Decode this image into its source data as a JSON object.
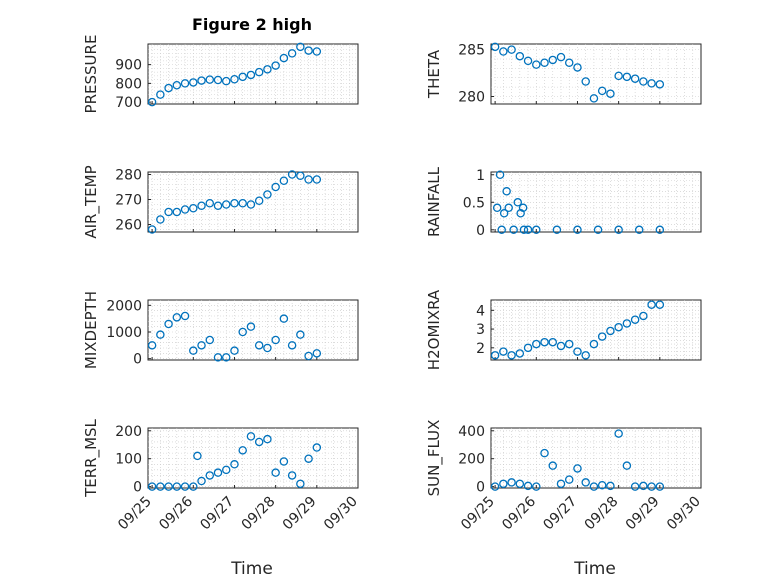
{
  "figure": {
    "title": "Figure 2 high",
    "xlabel": "Time"
  },
  "chart_data": [
    {
      "id": "pressure",
      "type": "scatter",
      "title": "Figure 2 high",
      "ylabel": "PRESSURE",
      "yticks": [
        "700",
        "800",
        "900"
      ],
      "ylim": [
        690,
        1010
      ],
      "xticklabels_shown": false,
      "x": [
        0.0,
        0.2,
        0.4,
        0.6,
        0.8,
        1.0,
        1.2,
        1.4,
        1.6,
        1.8,
        2.0,
        2.2,
        2.4,
        2.6,
        2.8,
        3.0,
        3.2,
        3.4,
        3.6,
        3.8,
        4.0
      ],
      "y": [
        700,
        740,
        775,
        790,
        800,
        805,
        815,
        820,
        818,
        812,
        822,
        835,
        845,
        860,
        875,
        895,
        935,
        960,
        995,
        975,
        970
      ]
    },
    {
      "id": "theta",
      "type": "scatter",
      "ylabel": "THETA",
      "yticks": [
        "280",
        "285"
      ],
      "ylim": [
        279.2,
        285.6
      ],
      "xticklabels_shown": false,
      "x": [
        0.0,
        0.2,
        0.4,
        0.6,
        0.8,
        1.0,
        1.2,
        1.4,
        1.6,
        1.8,
        2.0,
        2.2,
        2.4,
        2.6,
        2.8,
        3.0,
        3.2,
        3.4,
        3.6,
        3.8,
        4.0
      ],
      "y": [
        285.3,
        284.8,
        285.0,
        284.3,
        283.8,
        283.4,
        283.6,
        283.9,
        284.2,
        283.6,
        283.1,
        281.6,
        279.8,
        280.6,
        280.3,
        282.2,
        282.1,
        281.9,
        281.6,
        281.4,
        281.3
      ]
    },
    {
      "id": "air_temp",
      "type": "scatter",
      "ylabel": "AIR_TEMP",
      "yticks": [
        "260",
        "270",
        "280"
      ],
      "ylim": [
        257,
        281
      ],
      "xticklabels_shown": false,
      "x": [
        0.0,
        0.2,
        0.4,
        0.6,
        0.8,
        1.0,
        1.2,
        1.4,
        1.6,
        1.8,
        2.0,
        2.2,
        2.4,
        2.6,
        2.8,
        3.0,
        3.2,
        3.4,
        3.6,
        3.8,
        4.0
      ],
      "y": [
        258,
        262,
        265,
        265,
        266,
        266.5,
        267.5,
        268.5,
        267.5,
        268,
        268.5,
        268.5,
        268,
        269.5,
        272,
        275,
        277.5,
        280,
        279.5,
        278,
        278
      ]
    },
    {
      "id": "rainfall",
      "type": "scatter",
      "ylabel": "RAINFALL",
      "yticks": [
        "0",
        "0.5",
        "1"
      ],
      "ylim": [
        -0.04,
        1.05
      ],
      "xticklabels_shown": false,
      "x": [
        0.05,
        0.12,
        0.16,
        0.22,
        0.28,
        0.33,
        0.45,
        0.55,
        0.62,
        0.68,
        0.7,
        0.8,
        1.0,
        1.5,
        2.0,
        2.5,
        3.0,
        3.5,
        4.0
      ],
      "y": [
        0.4,
        1.0,
        0.0,
        0.3,
        0.7,
        0.4,
        0.0,
        0.5,
        0.3,
        0.4,
        0.0,
        0.0,
        0.0,
        0.0,
        0.0,
        0.0,
        0.0,
        0.0,
        0.0
      ]
    },
    {
      "id": "mixdepth",
      "type": "scatter",
      "ylabel": "MIXDEPTH",
      "yticks": [
        "0",
        "1000",
        "2000"
      ],
      "ylim": [
        -50,
        2200
      ],
      "xticklabels_shown": false,
      "x": [
        0.0,
        0.2,
        0.4,
        0.6,
        0.8,
        1.0,
        1.2,
        1.4,
        1.6,
        1.8,
        2.0,
        2.2,
        2.4,
        2.6,
        2.8,
        3.0,
        3.2,
        3.4,
        3.6,
        3.8,
        4.0
      ],
      "y": [
        500,
        900,
        1300,
        1550,
        1600,
        300,
        500,
        700,
        50,
        50,
        300,
        1000,
        1200,
        500,
        400,
        700,
        1500,
        500,
        900,
        100,
        200
      ]
    },
    {
      "id": "h2omixra",
      "type": "scatter",
      "ylabel": "H2OMIXRA",
      "yticks": [
        "2",
        "3",
        "4"
      ],
      "ylim": [
        1.35,
        4.55
      ],
      "xticklabels_shown": false,
      "x": [
        0.0,
        0.2,
        0.4,
        0.6,
        0.8,
        1.0,
        1.2,
        1.4,
        1.6,
        1.8,
        2.0,
        2.2,
        2.4,
        2.6,
        2.8,
        3.0,
        3.2,
        3.4,
        3.6,
        3.8,
        4.0
      ],
      "y": [
        1.6,
        1.8,
        1.6,
        1.7,
        2.0,
        2.2,
        2.3,
        2.3,
        2.1,
        2.2,
        1.8,
        1.6,
        2.2,
        2.6,
        2.9,
        3.1,
        3.3,
        3.5,
        3.7,
        4.3,
        4.3
      ]
    },
    {
      "id": "terr_msl",
      "type": "scatter",
      "ylabel": "TERR_MSL",
      "yticks": [
        "0",
        "100",
        "200"
      ],
      "ylim": [
        -5,
        210
      ],
      "xticklabels_shown": true,
      "x": [
        0.0,
        0.2,
        0.4,
        0.6,
        0.8,
        1.0,
        1.1,
        1.2,
        1.4,
        1.6,
        1.8,
        2.0,
        2.2,
        2.4,
        2.6,
        2.8,
        3.0,
        3.2,
        3.4,
        3.6,
        3.8,
        4.0
      ],
      "y": [
        0,
        0,
        0,
        0,
        0,
        0,
        110,
        20,
        40,
        50,
        60,
        80,
        130,
        180,
        160,
        170,
        50,
        90,
        40,
        10,
        100,
        140
      ]
    },
    {
      "id": "sun_flux",
      "type": "scatter",
      "ylabel": "SUN_FLUX",
      "yticks": [
        "0",
        "200",
        "400"
      ],
      "ylim": [
        -10,
        420
      ],
      "xticklabels_shown": true,
      "x": [
        0.0,
        0.2,
        0.4,
        0.6,
        0.8,
        1.0,
        1.2,
        1.4,
        1.6,
        1.8,
        2.0,
        2.2,
        2.4,
        2.6,
        2.8,
        3.0,
        3.2,
        3.4,
        3.6,
        3.8,
        4.0
      ],
      "y": [
        0,
        20,
        30,
        20,
        5,
        0,
        240,
        150,
        20,
        50,
        130,
        30,
        0,
        10,
        5,
        380,
        150,
        0,
        5,
        0,
        0
      ]
    }
  ],
  "xaxis": {
    "xlim": [
      -0.1,
      5.0
    ],
    "ticks": [
      0,
      1,
      2,
      3,
      4,
      5
    ],
    "ticklabels": [
      "09/25",
      "09/26",
      "09/27",
      "09/28",
      "09/29",
      "09/30"
    ]
  },
  "colors": {
    "marker": "#0072bd",
    "axes": "#262626",
    "grid": "#c8c8c8"
  }
}
